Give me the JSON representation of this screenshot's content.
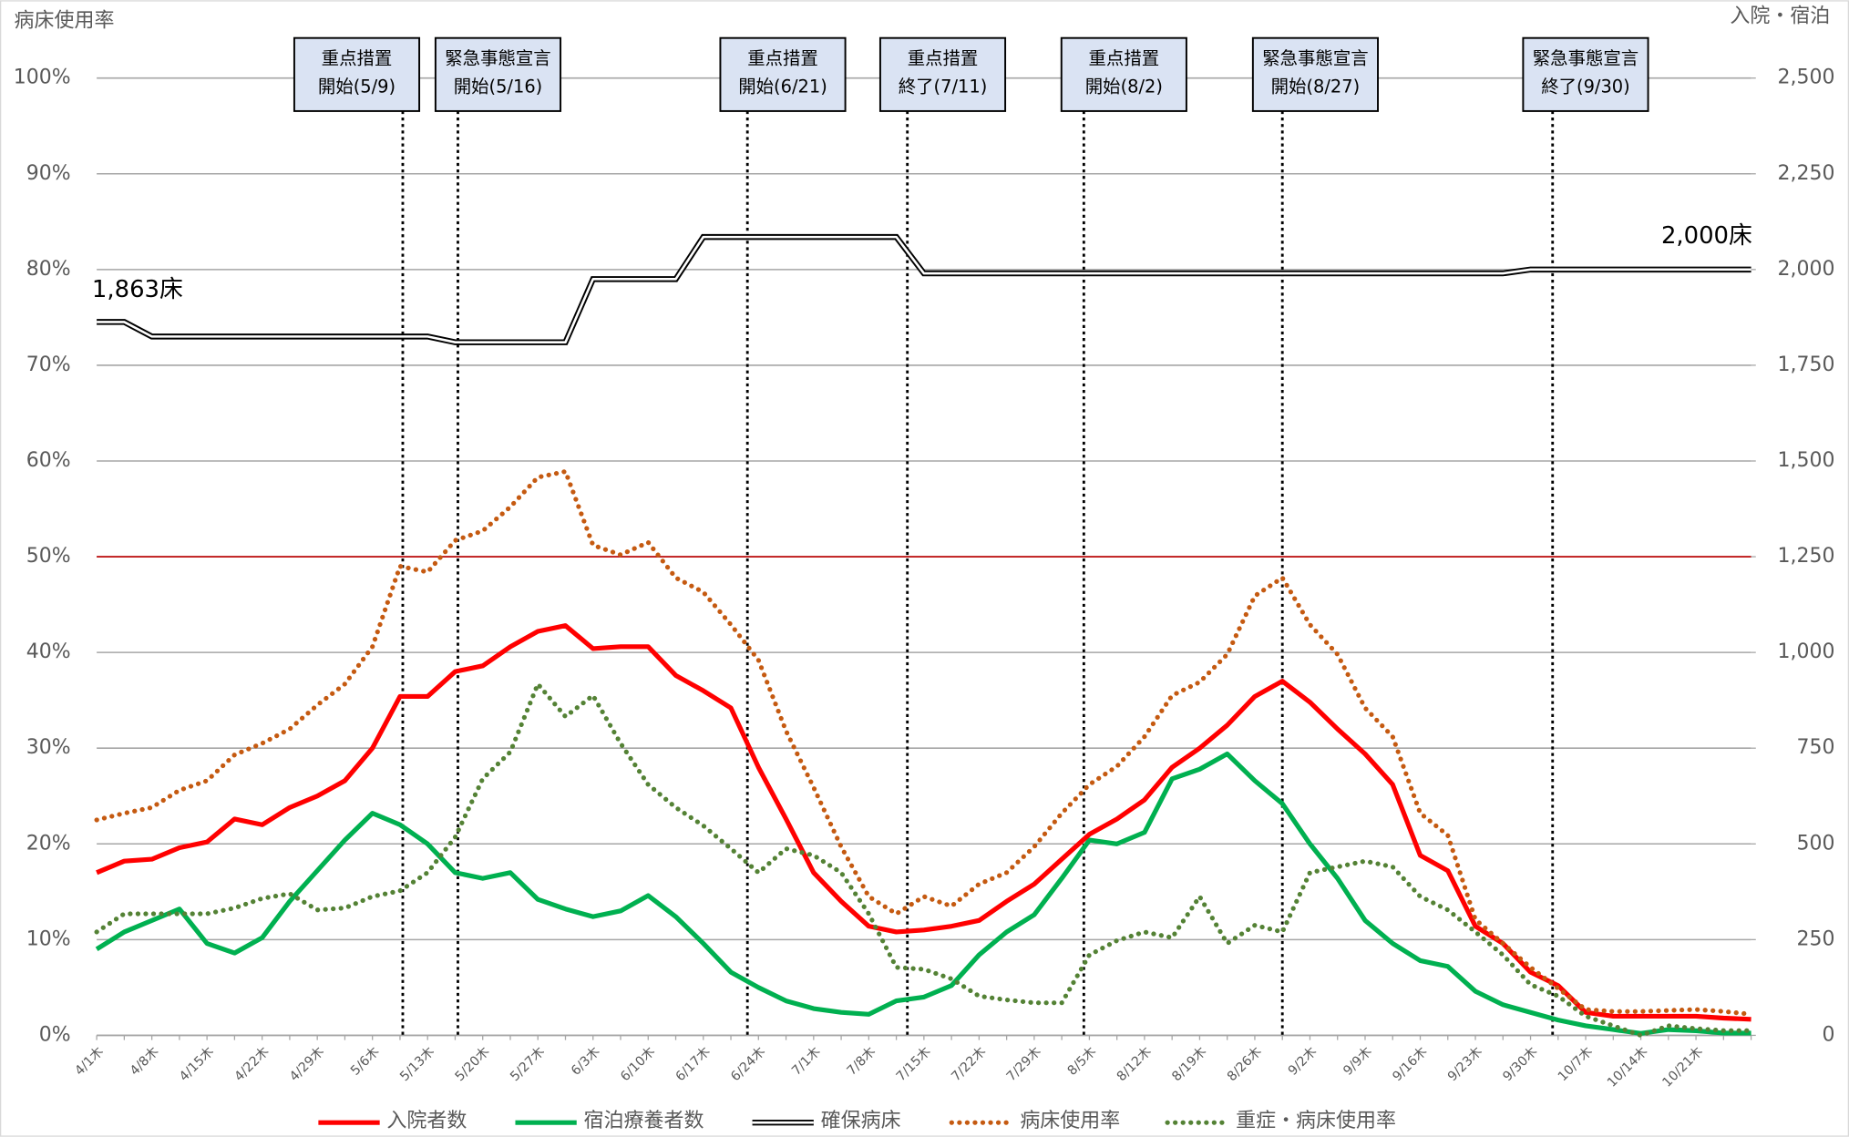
{
  "chart_data": {
    "type": "line",
    "y_axis_label": "病床使用率",
    "y2_axis_label": "入院・宿泊",
    "categories": [
      "4/1木",
      null,
      "4/8木",
      null,
      "4/15木",
      null,
      "4/22木",
      null,
      "4/29木",
      null,
      "5/6木",
      null,
      "5/13木",
      null,
      "5/20木",
      null,
      "5/27木",
      null,
      "6/3木",
      null,
      "6/10木",
      null,
      "6/17木",
      null,
      "6/24木",
      null,
      "7/1木",
      null,
      "7/8木",
      null,
      "7/15木",
      null,
      "7/22木",
      null,
      "7/29木",
      null,
      "8/5木",
      null,
      "8/12木",
      null,
      "8/19木",
      null,
      "8/26木",
      null,
      "9/2木",
      null,
      "9/9木",
      null,
      "9/16木",
      null,
      "9/23木",
      null,
      "9/30木",
      null,
      "10/7木",
      null,
      "10/14木",
      null,
      "10/21木",
      null,
      null
    ],
    "ylim": [
      0,
      100
    ],
    "yticks": [
      {
        "value": 0,
        "label": "0%"
      },
      {
        "value": 10,
        "label": "10%"
      },
      {
        "value": 20,
        "label": "20%"
      },
      {
        "value": 30,
        "label": "30%"
      },
      {
        "value": 40,
        "label": "40%"
      },
      {
        "value": 50,
        "label": "50%"
      },
      {
        "value": 60,
        "label": "60%"
      },
      {
        "value": 70,
        "label": "70%"
      },
      {
        "value": 80,
        "label": "80%"
      },
      {
        "value": 90,
        "label": "90%"
      },
      {
        "value": 100,
        "label": "100%"
      }
    ],
    "y2lim": [
      0,
      2500
    ],
    "y2ticks": [
      0,
      250,
      500,
      750,
      {
        "value": 1000,
        "label": "1,000"
      },
      {
        "value": 1250,
        "label": "1,250"
      },
      {
        "value": 1500,
        "label": "1,500"
      },
      {
        "value": 1750,
        "label": "1,750"
      },
      {
        "value": 2000,
        "label": "2,000"
      },
      {
        "value": 2250,
        "label": "2,250"
      },
      {
        "value": 2500,
        "label": "2,500"
      }
    ],
    "grid": true,
    "reference_line": {
      "value": 50,
      "color": "#c00000"
    },
    "legend": "bottom",
    "series": [
      {
        "name": "入院者数",
        "color": "#ff0000",
        "style": "solid",
        "axis": "y2",
        "values": [
          425,
          455,
          460,
          490,
          505,
          565,
          550,
          595,
          625,
          665,
          750,
          885,
          885,
          950,
          965,
          1015,
          1055,
          1070,
          1010,
          1015,
          1015,
          940,
          900,
          855,
          700,
          565,
          425,
          350,
          285,
          270,
          275,
          285,
          300,
          350,
          395,
          460,
          525,
          565,
          615,
          700,
          750,
          810,
          885,
          925,
          870,
          800,
          735,
          655,
          470,
          430,
          285,
          240,
          165,
          130,
          60,
          50,
          50,
          50,
          50,
          45,
          42
        ]
      },
      {
        "name": "宿泊療養者数",
        "color": "#00b050",
        "style": "solid",
        "axis": "y2",
        "values": [
          225,
          270,
          300,
          330,
          240,
          215,
          255,
          350,
          430,
          510,
          580,
          550,
          500,
          425,
          410,
          425,
          355,
          330,
          310,
          325,
          365,
          310,
          240,
          165,
          125,
          90,
          70,
          60,
          55,
          90,
          100,
          130,
          210,
          270,
          315,
          410,
          510,
          500,
          530,
          670,
          695,
          735,
          665,
          605,
          500,
          410,
          300,
          240,
          195,
          180,
          115,
          80,
          60,
          40,
          25,
          15,
          5,
          15,
          12,
          6,
          6
        ]
      },
      {
        "name": "確保病床",
        "color": "#000000",
        "style": "double",
        "axis": "y2",
        "values": [
          1863,
          1863,
          1825,
          1825,
          1825,
          1825,
          1825,
          1825,
          1825,
          1825,
          1825,
          1825,
          1825,
          1810,
          1810,
          1810,
          1810,
          1810,
          1975,
          1975,
          1975,
          1975,
          2085,
          2085,
          2085,
          2085,
          2085,
          2085,
          2085,
          2085,
          1990,
          1990,
          1990,
          1990,
          1990,
          1990,
          1990,
          1990,
          1990,
          1990,
          1990,
          1990,
          1990,
          1990,
          1990,
          1990,
          1990,
          1990,
          1990,
          1990,
          1990,
          1990,
          2000,
          2000,
          2000,
          2000,
          2000,
          2000,
          2000,
          2000,
          2000
        ]
      },
      {
        "name": "病床使用率",
        "color": "#c55a11",
        "style": "dotted",
        "axis": "y",
        "values": [
          22.5,
          23.2,
          23.8,
          25.6,
          26.6,
          29.3,
          30.5,
          32,
          34.5,
          36.7,
          40.6,
          49,
          48.4,
          51.7,
          52.7,
          55.2,
          58.3,
          58.9,
          51.2,
          50.2,
          51.5,
          47.8,
          46.3,
          42.9,
          39.2,
          31.8,
          25.9,
          19.7,
          14.5,
          12.7,
          14.5,
          13.5,
          15.8,
          17,
          19.7,
          23.2,
          26.2,
          28.1,
          31.2,
          35.5,
          36.9,
          39.8,
          45.9,
          47.8,
          42.9,
          39.8,
          34.2,
          31.2,
          23.2,
          20.9,
          12.1,
          9.6,
          7.1,
          4.9,
          2.7,
          2.5,
          2.5,
          2.6,
          2.7,
          2.5,
          2.2
        ]
      },
      {
        "name": "重症・病床使用率",
        "color": "#548235",
        "style": "dotted",
        "axis": "y",
        "values": [
          10.8,
          12.7,
          12.7,
          12.7,
          12.7,
          13.3,
          14.3,
          14.8,
          13.1,
          13.3,
          14.5,
          15.1,
          17,
          20.7,
          26.8,
          29.6,
          36.7,
          33.3,
          35.5,
          30.5,
          26.2,
          23.8,
          21.9,
          19.5,
          17,
          19.5,
          18.8,
          17,
          12.7,
          7.1,
          6.9,
          5.9,
          4.1,
          3.7,
          3.4,
          3.4,
          8.4,
          9.9,
          10.8,
          10.2,
          14.5,
          9.6,
          11.5,
          10.8,
          17,
          17.6,
          18.2,
          17.6,
          14.5,
          13.1,
          10.8,
          8.4,
          5.3,
          4.1,
          2,
          1,
          0,
          1,
          0.7,
          0.5,
          0.5
        ]
      }
    ],
    "annotations": [
      {
        "lines": [
          "重点措置",
          "開始(5/9)"
        ],
        "x": 11.1
      },
      {
        "lines": [
          "緊急事態宣言",
          "開始(5/16)"
        ],
        "x": 13.1
      },
      {
        "lines": [
          "重点措置",
          "開始(6/21)"
        ],
        "x": 23.6
      },
      {
        "lines": [
          "重点措置",
          "終了(7/11)"
        ],
        "x": 29.4
      },
      {
        "lines": [
          "重点措置",
          "開始(8/2)"
        ],
        "x": 35.8
      },
      {
        "lines": [
          "緊急事態宣言",
          "開始(8/27)"
        ],
        "x": 43.0
      },
      {
        "lines": [
          "緊急事態宣言",
          "終了(9/30)"
        ],
        "x": 52.8
      }
    ],
    "point_labels": [
      "1,863床",
      "2,000床"
    ]
  }
}
